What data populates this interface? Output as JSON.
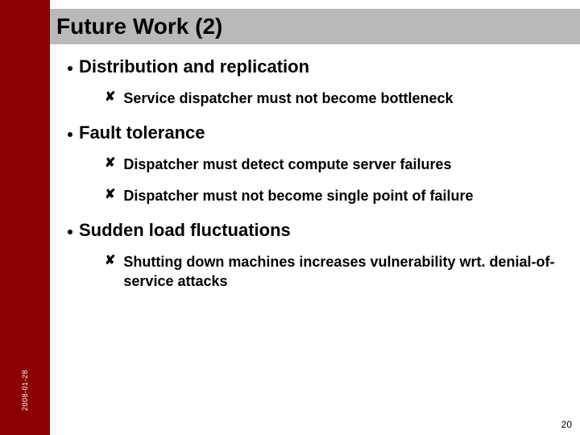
{
  "colors": {
    "sidebar": "#8b0000",
    "titlebar": "#b9b9b9",
    "background": "#ffffff",
    "text": "#000000",
    "date_text": "#ffffff"
  },
  "title": "Future Work (2)",
  "date": "2008-01-28",
  "page_number": "20",
  "bullets": [
    {
      "text": "Distribution and replication",
      "sub": [
        "Service dispatcher must not become bottleneck"
      ]
    },
    {
      "text": "Fault tolerance",
      "sub": [
        "Dispatcher must detect compute server failures",
        "Dispatcher must not become single point of failure"
      ]
    },
    {
      "text": "Sudden load fluctuations",
      "sub": [
        "Shutting down machines increases vulnerability wrt. denial-of-service attacks"
      ]
    }
  ]
}
